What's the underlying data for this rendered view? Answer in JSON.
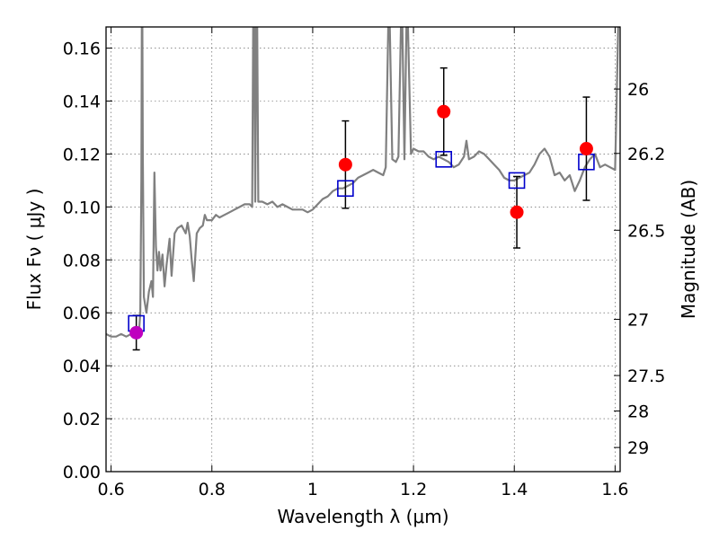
{
  "chart_data": {
    "type": "scatter",
    "xlabel": "Wavelength  λ (μm)",
    "ylabel": "Flux  Fν  ( μJy )",
    "ylabel_right": "Magnitude (AB)",
    "xlim": [
      0.59,
      1.61
    ],
    "ylim": [
      0.0,
      0.168
    ],
    "grid": true,
    "x_ticks": [
      0.6,
      0.8,
      1.0,
      1.2,
      1.4,
      1.6
    ],
    "x_tick_labels": [
      "0.6",
      "0.8",
      "1",
      "1.2",
      "1.4",
      "1.6"
    ],
    "y_ticks": [
      0.0,
      0.02,
      0.04,
      0.06,
      0.08,
      0.1,
      0.12,
      0.14,
      0.16
    ],
    "y_tick_labels": [
      "0.00",
      "0.02",
      "0.04",
      "0.06",
      "0.08",
      "0.10",
      "0.12",
      "0.14",
      "0.16"
    ],
    "right_ticks": [
      {
        "label": "26",
        "mag": 26.0
      },
      {
        "label": "26.2",
        "mag": 26.2
      },
      {
        "label": "26.5",
        "mag": 26.5
      },
      {
        "label": "27",
        "mag": 27.0
      },
      {
        "label": "27.5",
        "mag": 27.5
      },
      {
        "label": "28",
        "mag": 28.0
      },
      {
        "label": "29",
        "mag": 29.0
      }
    ],
    "series": [
      {
        "kind": "line",
        "color": "#808080",
        "points": [
          [
            0.59,
            0.052
          ],
          [
            0.6,
            0.051
          ],
          [
            0.61,
            0.051
          ],
          [
            0.62,
            0.052
          ],
          [
            0.63,
            0.051
          ],
          [
            0.64,
            0.052
          ],
          [
            0.65,
            0.051
          ],
          [
            0.655,
            0.052
          ],
          [
            0.658,
            0.06
          ],
          [
            0.66,
            0.11
          ],
          [
            0.661,
            0.168
          ],
          [
            0.662,
            0.168
          ],
          [
            0.663,
            0.12
          ],
          [
            0.665,
            0.066
          ],
          [
            0.67,
            0.06
          ],
          [
            0.675,
            0.068
          ],
          [
            0.68,
            0.072
          ],
          [
            0.683,
            0.066
          ],
          [
            0.686,
            0.113
          ],
          [
            0.689,
            0.085
          ],
          [
            0.692,
            0.076
          ],
          [
            0.695,
            0.083
          ],
          [
            0.698,
            0.076
          ],
          [
            0.702,
            0.082
          ],
          [
            0.706,
            0.07
          ],
          [
            0.71,
            0.078
          ],
          [
            0.716,
            0.088
          ],
          [
            0.72,
            0.074
          ],
          [
            0.726,
            0.09
          ],
          [
            0.732,
            0.092
          ],
          [
            0.74,
            0.093
          ],
          [
            0.748,
            0.09
          ],
          [
            0.752,
            0.094
          ],
          [
            0.756,
            0.089
          ],
          [
            0.76,
            0.08
          ],
          [
            0.764,
            0.072
          ],
          [
            0.77,
            0.09
          ],
          [
            0.776,
            0.092
          ],
          [
            0.782,
            0.093
          ],
          [
            0.786,
            0.097
          ],
          [
            0.79,
            0.095
          ],
          [
            0.8,
            0.095
          ],
          [
            0.808,
            0.097
          ],
          [
            0.815,
            0.096
          ],
          [
            0.825,
            0.097
          ],
          [
            0.835,
            0.098
          ],
          [
            0.845,
            0.099
          ],
          [
            0.855,
            0.1
          ],
          [
            0.865,
            0.101
          ],
          [
            0.875,
            0.101
          ],
          [
            0.88,
            0.1
          ],
          [
            0.882,
            0.168
          ],
          [
            0.884,
            0.168
          ],
          [
            0.886,
            0.102
          ],
          [
            0.888,
            0.168
          ],
          [
            0.89,
            0.168
          ],
          [
            0.892,
            0.102
          ],
          [
            0.9,
            0.102
          ],
          [
            0.91,
            0.101
          ],
          [
            0.92,
            0.102
          ],
          [
            0.93,
            0.1
          ],
          [
            0.94,
            0.101
          ],
          [
            0.95,
            0.1
          ],
          [
            0.96,
            0.099
          ],
          [
            0.97,
            0.099
          ],
          [
            0.98,
            0.099
          ],
          [
            0.99,
            0.098
          ],
          [
            1.0,
            0.099
          ],
          [
            1.01,
            0.101
          ],
          [
            1.02,
            0.103
          ],
          [
            1.03,
            0.104
          ],
          [
            1.04,
            0.106
          ],
          [
            1.05,
            0.107
          ],
          [
            1.06,
            0.107
          ],
          [
            1.07,
            0.108
          ],
          [
            1.08,
            0.109
          ],
          [
            1.09,
            0.111
          ],
          [
            1.1,
            0.112
          ],
          [
            1.11,
            0.113
          ],
          [
            1.12,
            0.114
          ],
          [
            1.13,
            0.113
          ],
          [
            1.14,
            0.112
          ],
          [
            1.145,
            0.115
          ],
          [
            1.15,
            0.168
          ],
          [
            1.153,
            0.168
          ],
          [
            1.158,
            0.118
          ],
          [
            1.165,
            0.117
          ],
          [
            1.17,
            0.119
          ],
          [
            1.175,
            0.168
          ],
          [
            1.178,
            0.168
          ],
          [
            1.182,
            0.118
          ],
          [
            1.186,
            0.168
          ],
          [
            1.189,
            0.168
          ],
          [
            1.195,
            0.12
          ],
          [
            1.2,
            0.122
          ],
          [
            1.21,
            0.121
          ],
          [
            1.22,
            0.121
          ],
          [
            1.23,
            0.119
          ],
          [
            1.24,
            0.118
          ],
          [
            1.25,
            0.119
          ],
          [
            1.26,
            0.118
          ],
          [
            1.27,
            0.117
          ],
          [
            1.28,
            0.115
          ],
          [
            1.29,
            0.116
          ],
          [
            1.3,
            0.119
          ],
          [
            1.305,
            0.125
          ],
          [
            1.31,
            0.118
          ],
          [
            1.32,
            0.119
          ],
          [
            1.33,
            0.121
          ],
          [
            1.34,
            0.12
          ],
          [
            1.35,
            0.118
          ],
          [
            1.36,
            0.116
          ],
          [
            1.37,
            0.114
          ],
          [
            1.38,
            0.111
          ],
          [
            1.39,
            0.11
          ],
          [
            1.4,
            0.11
          ],
          [
            1.41,
            0.111
          ],
          [
            1.42,
            0.112
          ],
          [
            1.43,
            0.113
          ],
          [
            1.44,
            0.116
          ],
          [
            1.45,
            0.12
          ],
          [
            1.46,
            0.122
          ],
          [
            1.47,
            0.119
          ],
          [
            1.48,
            0.112
          ],
          [
            1.49,
            0.113
          ],
          [
            1.5,
            0.11
          ],
          [
            1.51,
            0.112
          ],
          [
            1.52,
            0.106
          ],
          [
            1.53,
            0.11
          ],
          [
            1.54,
            0.115
          ],
          [
            1.55,
            0.118
          ],
          [
            1.56,
            0.12
          ],
          [
            1.57,
            0.115
          ],
          [
            1.58,
            0.116
          ],
          [
            1.59,
            0.115
          ],
          [
            1.6,
            0.114
          ],
          [
            1.603,
            0.14
          ],
          [
            1.606,
            0.168
          ],
          [
            1.61,
            0.168
          ]
        ]
      },
      {
        "kind": "observed",
        "color": "#ff0000",
        "points": [
          {
            "x": 1.065,
            "y": 0.116,
            "yerr": [
              0.0165,
              0.0165
            ]
          },
          {
            "x": 1.26,
            "y": 0.136,
            "yerr": [
              0.0165,
              0.0165
            ]
          },
          {
            "x": 1.405,
            "y": 0.098,
            "yerr": [
              0.0135,
              0.0135
            ]
          },
          {
            "x": 1.543,
            "y": 0.122,
            "yerr": [
              0.0195,
              0.0195
            ]
          }
        ]
      },
      {
        "kind": "observed",
        "color": "#bf00bf",
        "points": [
          {
            "x": 0.65,
            "y": 0.0525,
            "yerr": [
              0.0065,
              0.0065
            ]
          }
        ]
      },
      {
        "kind": "model_photometry",
        "color": "#0000cc",
        "points": [
          {
            "x": 0.65,
            "y": 0.056
          },
          {
            "x": 1.065,
            "y": 0.107
          },
          {
            "x": 1.26,
            "y": 0.118
          },
          {
            "x": 1.405,
            "y": 0.11
          },
          {
            "x": 1.543,
            "y": 0.117
          }
        ]
      }
    ]
  }
}
